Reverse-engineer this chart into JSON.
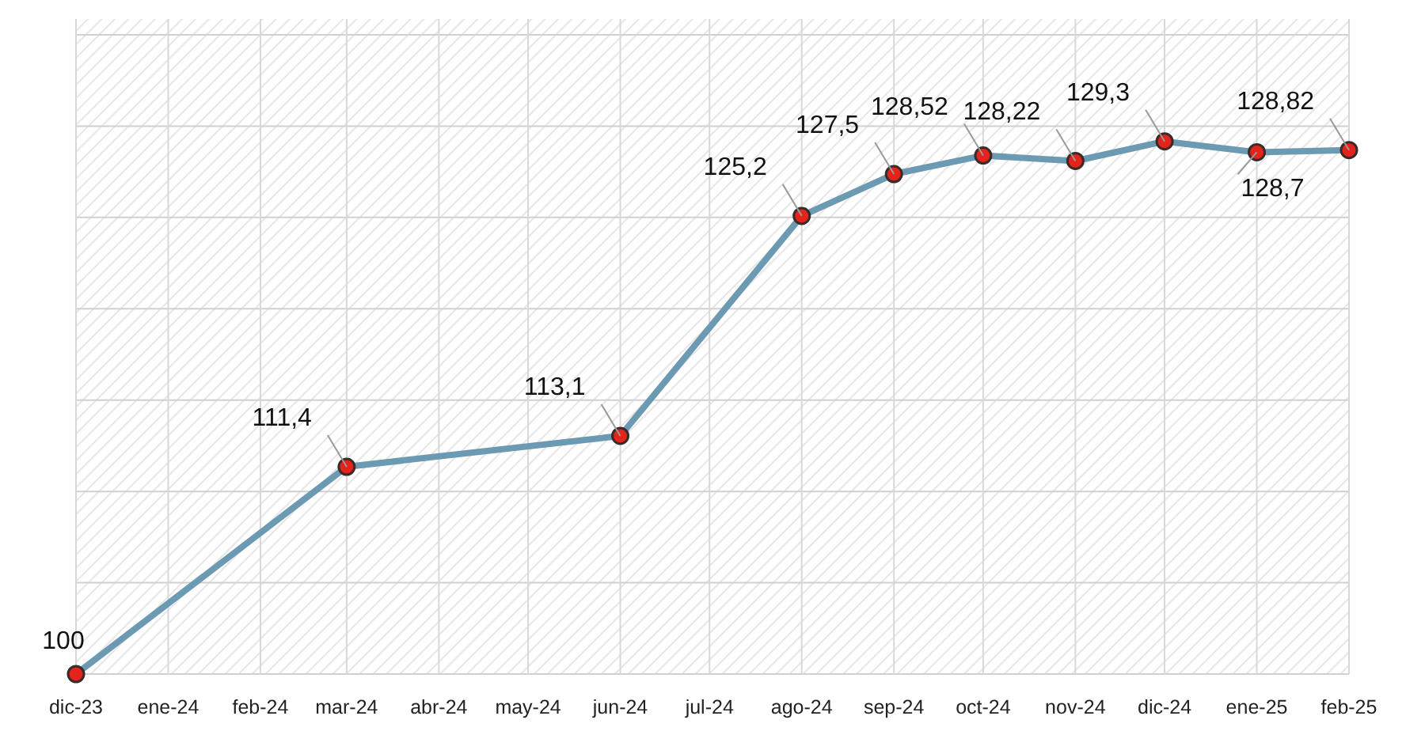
{
  "chart_data": {
    "type": "line",
    "x": [
      "2023-12",
      "2024-03",
      "2024-06",
      "2024-08",
      "2024-09",
      "2024-10",
      "2024-11",
      "2024-12",
      "2025-01",
      "2025-02"
    ],
    "series": [
      {
        "color": "#6d9ab3",
        "values": [
          100,
          111.4,
          113.1,
          125.2,
          127.5,
          128.52,
          128.22,
          129.3,
          128.7,
          128.82
        ],
        "value_labels": [
          "100",
          "111,4",
          "113,1",
          "125,2",
          "127,5",
          "128,52",
          "128,22",
          "129,3",
          "128,7",
          "128,82"
        ]
      }
    ],
    "xlim": [
      "2023-12",
      "2025-02"
    ],
    "xticks": [
      {
        "value": "2023-12",
        "label": "dic-23"
      },
      {
        "value": "2024-01",
        "label": "ene-24"
      },
      {
        "value": "2024-02",
        "label": "feb-24"
      },
      {
        "value": "2024-03",
        "label": "mar-24"
      },
      {
        "value": "2024-04",
        "label": "abr-24"
      },
      {
        "value": "2024-05",
        "label": "may-24"
      },
      {
        "value": "2024-06",
        "label": "jun-24"
      },
      {
        "value": "2024-07",
        "label": "jul-24"
      },
      {
        "value": "2024-08",
        "label": "ago-24"
      },
      {
        "value": "2024-09",
        "label": "sep-24"
      },
      {
        "value": "2024-10",
        "label": "oct-24"
      },
      {
        "value": "2024-11",
        "label": "nov-24"
      },
      {
        "value": "2024-12",
        "label": "dic-24"
      },
      {
        "value": "2025-01",
        "label": "ene-25"
      },
      {
        "value": "2025-02",
        "label": "feb-25"
      }
    ],
    "tick_labels": "x",
    "grid": true,
    "marker": "circle",
    "line_style": "solid"
  }
}
